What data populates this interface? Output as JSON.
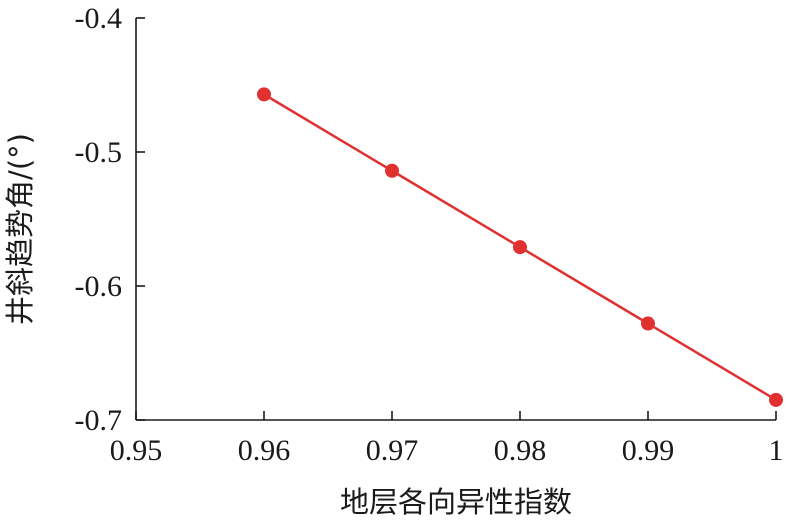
{
  "chart_data": {
    "type": "line",
    "xlabel": "地层各向异性指数",
    "ylabel": "井斜趋势角/(°)",
    "xlim": [
      0.95,
      1.0
    ],
    "ylim": [
      -0.7,
      -0.4
    ],
    "x_ticks": [
      "0.95",
      "0.96",
      "0.97",
      "0.98",
      "0.99",
      "1"
    ],
    "x_tick_values": [
      0.95,
      0.96,
      0.97,
      0.98,
      0.99,
      1.0
    ],
    "y_ticks": [
      "-0.4",
      "-0.5",
      "-0.6",
      "-0.7"
    ],
    "y_tick_values": [
      -0.4,
      -0.5,
      -0.6,
      -0.7
    ],
    "grid": false,
    "series": [
      {
        "x": [
          0.96,
          0.97,
          0.98,
          0.99,
          1.0
        ],
        "y": [
          -0.457,
          -0.514,
          -0.571,
          -0.628,
          -0.685
        ],
        "color": "#e03030",
        "marker": "circle"
      }
    ]
  }
}
